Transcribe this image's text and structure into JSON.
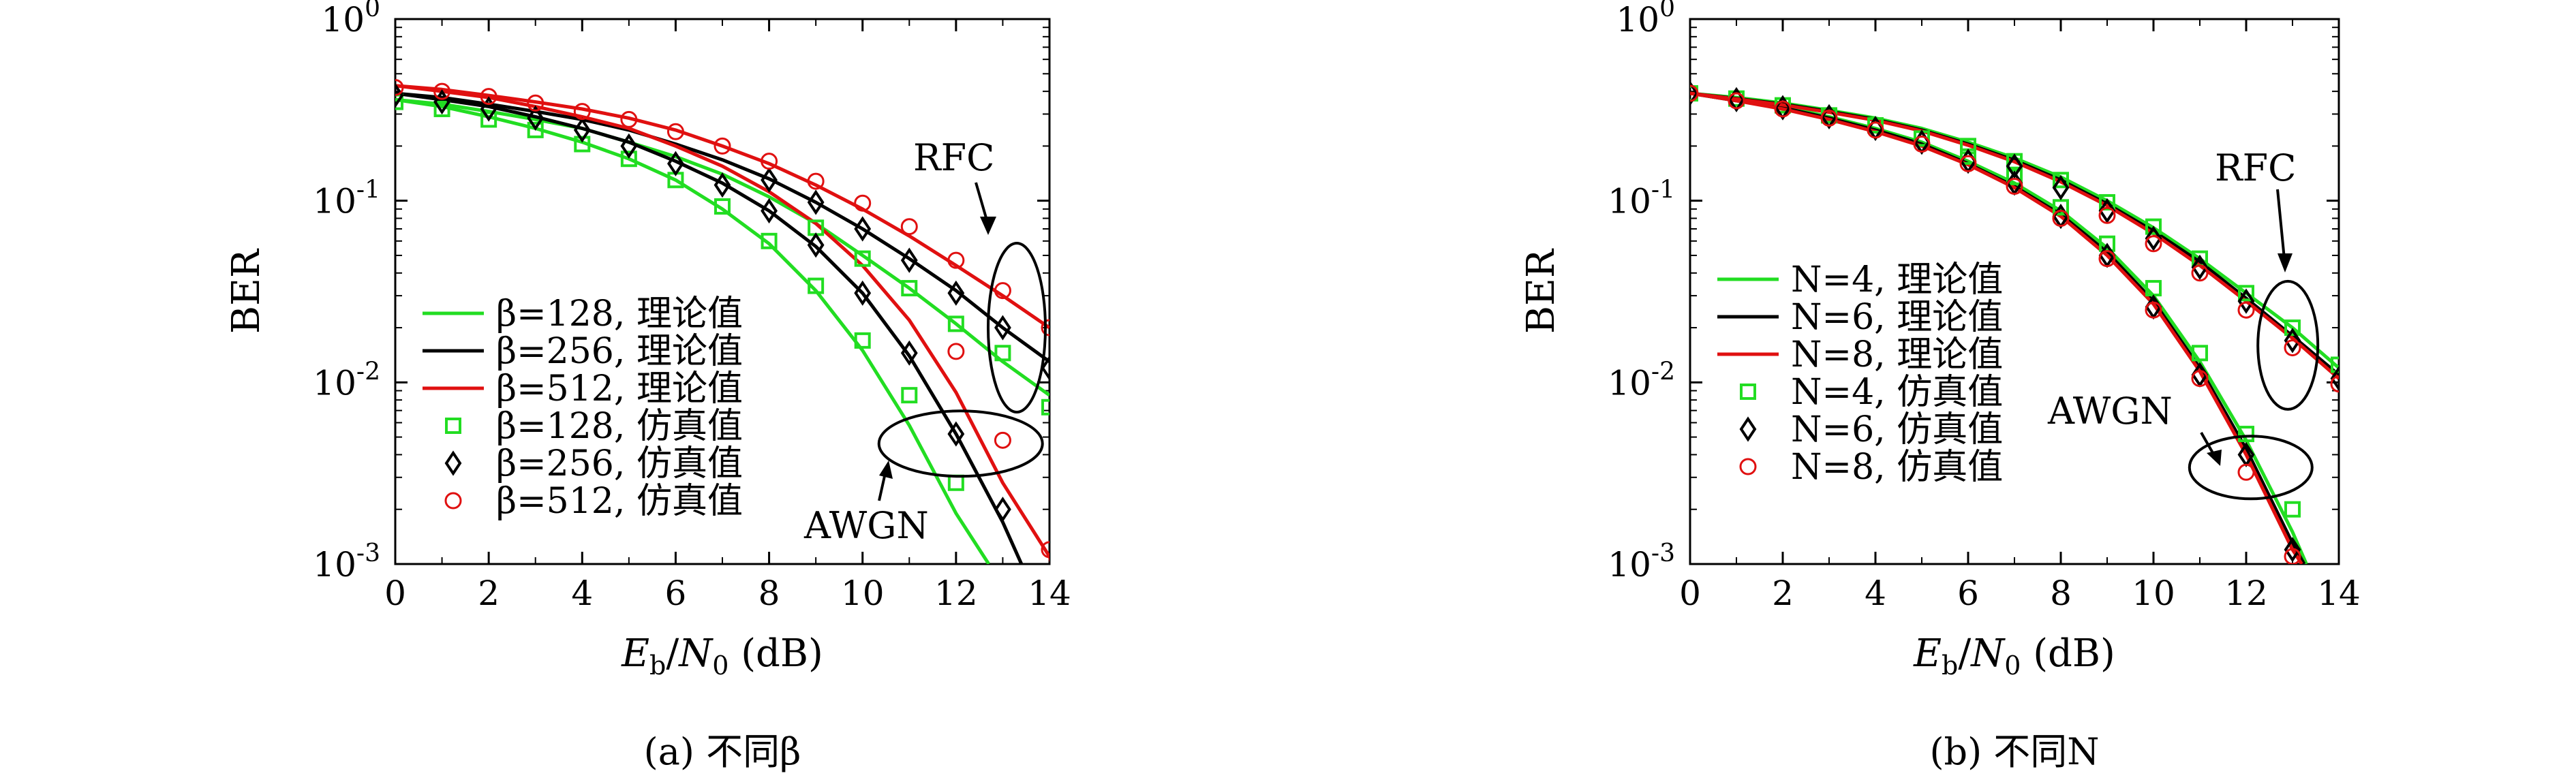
{
  "chart_data": [
    {
      "id": "a",
      "type": "line",
      "caption": "(a) 不同β",
      "xlabel": "E_b/N_0 (dB)",
      "ylabel": "BER",
      "xlim": [
        0,
        14
      ],
      "ylim": [
        0.001,
        1
      ],
      "yscale": "log",
      "x_ticks": [
        "0",
        "2",
        "4",
        "6",
        "8",
        "10",
        "12",
        "14"
      ],
      "y_ticks": [
        "10^0",
        "10^-1",
        "10^-2",
        "10^-3"
      ],
      "grid": false,
      "legend_position": "lower-left",
      "colors": {
        "green": "#22dd22",
        "black": "#000000",
        "red": "#e01010"
      },
      "legend": [
        {
          "label": "β=128, 理论值",
          "style": "line",
          "color": "#22dd22"
        },
        {
          "label": "β=256, 理论值",
          "style": "line",
          "color": "#000000"
        },
        {
          "label": "β=512, 理论值",
          "style": "line",
          "color": "#e01010"
        },
        {
          "label": "β=128, 仿真值",
          "style": "square",
          "color": "#22dd22"
        },
        {
          "label": "β=256, 仿真值",
          "style": "diamond",
          "color": "#000000"
        },
        {
          "label": "β=512, 仿真值",
          "style": "circle",
          "color": "#e01010"
        }
      ],
      "annotations": [
        "RFC",
        "AWGN"
      ],
      "series": [
        {
          "name": "β=128, 理论值",
          "kind": "line",
          "color": "#22dd22",
          "x": [
            0,
            1,
            2,
            3,
            4,
            5,
            6,
            7,
            8,
            9,
            10,
            11,
            12,
            12.7
          ],
          "y": [
            0.36,
            0.33,
            0.29,
            0.25,
            0.21,
            0.17,
            0.13,
            0.09,
            0.058,
            0.032,
            0.015,
            0.0058,
            0.0019,
            0.001
          ]
        },
        {
          "name": "β=128, 理论值",
          "kind": "line",
          "color": "#22dd22",
          "x": [
            0,
            1,
            2,
            3,
            4,
            5,
            6,
            7,
            8,
            9,
            10,
            11,
            12,
            13,
            14
          ],
          "y": [
            0.36,
            0.34,
            0.31,
            0.28,
            0.25,
            0.21,
            0.175,
            0.14,
            0.105,
            0.075,
            0.05,
            0.033,
            0.021,
            0.013,
            0.0085
          ]
        },
        {
          "name": "β=256, 理论值",
          "kind": "line",
          "color": "#000000",
          "x": [
            0,
            1,
            2,
            3,
            4,
            5,
            6,
            7,
            8,
            9,
            10,
            11,
            12,
            13,
            13.4
          ],
          "y": [
            0.39,
            0.36,
            0.33,
            0.29,
            0.25,
            0.21,
            0.165,
            0.125,
            0.088,
            0.056,
            0.031,
            0.014,
            0.0052,
            0.0017,
            0.001
          ]
        },
        {
          "name": "β=256, 理论值",
          "kind": "line",
          "color": "#000000",
          "x": [
            0,
            1,
            2,
            3,
            4,
            5,
            6,
            7,
            8,
            9,
            10,
            11,
            12,
            13,
            14
          ],
          "y": [
            0.39,
            0.37,
            0.34,
            0.31,
            0.28,
            0.245,
            0.205,
            0.168,
            0.132,
            0.098,
            0.07,
            0.048,
            0.032,
            0.02,
            0.013
          ]
        },
        {
          "name": "β=512, 理论值",
          "kind": "line",
          "color": "#e01010",
          "x": [
            0,
            1,
            2,
            3,
            4,
            5,
            6,
            7,
            8,
            9,
            10,
            11,
            12,
            13,
            14,
            14.05
          ],
          "y": [
            0.43,
            0.4,
            0.37,
            0.33,
            0.29,
            0.25,
            0.2,
            0.155,
            0.112,
            0.075,
            0.044,
            0.022,
            0.0088,
            0.0028,
            0.0011,
            0.001
          ]
        },
        {
          "name": "β=512, 理论值",
          "kind": "line",
          "color": "#e01010",
          "x": [
            0,
            1,
            2,
            3,
            4,
            5,
            6,
            7,
            8,
            9,
            10,
            11,
            12,
            13,
            14
          ],
          "y": [
            0.43,
            0.41,
            0.38,
            0.35,
            0.32,
            0.285,
            0.245,
            0.2,
            0.16,
            0.122,
            0.09,
            0.064,
            0.044,
            0.03,
            0.02
          ]
        },
        {
          "name": "β=128, 仿真值",
          "kind": "marker",
          "marker": "square",
          "color": "#22dd22",
          "x": [
            0,
            1,
            2,
            3,
            4,
            5,
            6,
            7,
            8,
            9,
            10,
            11,
            12
          ],
          "y": [
            0.35,
            0.32,
            0.28,
            0.245,
            0.205,
            0.17,
            0.13,
            0.093,
            0.06,
            0.034,
            0.017,
            0.0085,
            0.0028
          ]
        },
        {
          "name": "β=128, 仿真值",
          "kind": "marker",
          "marker": "square",
          "color": "#22dd22",
          "x": [
            9,
            10,
            11,
            12,
            13,
            14
          ],
          "y": [
            0.071,
            0.048,
            0.033,
            0.021,
            0.0145,
            0.0073
          ]
        },
        {
          "name": "β=256, 仿真值",
          "kind": "marker",
          "marker": "diamond",
          "color": "#000000",
          "x": [
            0,
            1,
            2,
            3,
            4,
            5,
            6,
            7,
            8,
            9,
            10,
            11,
            12,
            13
          ],
          "y": [
            0.38,
            0.35,
            0.32,
            0.285,
            0.245,
            0.2,
            0.16,
            0.122,
            0.088,
            0.057,
            0.031,
            0.0145,
            0.0052,
            0.002
          ]
        },
        {
          "name": "β=256, 仿真值",
          "kind": "marker",
          "marker": "diamond",
          "color": "#000000",
          "x": [
            8,
            9,
            10,
            11,
            12,
            13,
            14
          ],
          "y": [
            0.13,
            0.098,
            0.07,
            0.047,
            0.031,
            0.02,
            0.012
          ]
        },
        {
          "name": "β=512, 仿真值",
          "kind": "marker",
          "marker": "circle",
          "color": "#e01010",
          "x": [
            0,
            1,
            2,
            3,
            4,
            5,
            6,
            7,
            8,
            9,
            10,
            11,
            12,
            13,
            14
          ],
          "y": [
            0.42,
            0.4,
            0.375,
            0.345,
            0.31,
            0.28,
            0.24,
            0.2,
            0.165,
            0.128,
            0.097,
            0.072,
            0.047,
            0.032,
            0.02
          ]
        },
        {
          "name": "β=512, 仿真值",
          "kind": "marker",
          "marker": "circle",
          "color": "#e01010",
          "x": [
            12,
            13,
            14
          ],
          "y": [
            0.0148,
            0.0048,
            0.0012
          ]
        }
      ]
    },
    {
      "id": "b",
      "type": "line",
      "caption": "(b) 不同N",
      "xlabel": "E_b/N_0 (dB)",
      "ylabel": "BER",
      "xlim": [
        0,
        14
      ],
      "ylim": [
        0.001,
        1
      ],
      "yscale": "log",
      "x_ticks": [
        "0",
        "2",
        "4",
        "6",
        "8",
        "10",
        "12",
        "14"
      ],
      "y_ticks": [
        "10^0",
        "10^-1",
        "10^-2",
        "10^-3"
      ],
      "grid": false,
      "legend_position": "left",
      "colors": {
        "green": "#22dd22",
        "black": "#000000",
        "red": "#e01010"
      },
      "legend": [
        {
          "label": "N=4, 理论值",
          "style": "line",
          "color": "#22dd22"
        },
        {
          "label": "N=6, 理论值",
          "style": "line",
          "color": "#000000"
        },
        {
          "label": "N=8, 理论值",
          "style": "line",
          "color": "#e01010"
        },
        {
          "label": "N=4, 仿真值",
          "style": "square",
          "color": "#22dd22"
        },
        {
          "label": "N=6, 仿真值",
          "style": "diamond",
          "color": "#000000"
        },
        {
          "label": "N=8, 仿真值",
          "style": "circle",
          "color": "#e01010"
        }
      ],
      "annotations": [
        "RFC",
        "AWGN"
      ],
      "series": [
        {
          "name": "N=4, 理论值",
          "kind": "line",
          "color": "#22dd22",
          "x": [
            0,
            1,
            2,
            3,
            4,
            5,
            6,
            7,
            8,
            9,
            10,
            11,
            12,
            13,
            13.3
          ],
          "y": [
            0.39,
            0.36,
            0.33,
            0.29,
            0.25,
            0.21,
            0.165,
            0.125,
            0.088,
            0.055,
            0.03,
            0.013,
            0.0048,
            0.0015,
            0.001
          ]
        },
        {
          "name": "N=4, 理论值",
          "kind": "line",
          "color": "#22dd22",
          "x": [
            0,
            1,
            2,
            3,
            4,
            5,
            6,
            7,
            8,
            9,
            10,
            11,
            12,
            13,
            14
          ],
          "y": [
            0.39,
            0.37,
            0.345,
            0.315,
            0.285,
            0.25,
            0.21,
            0.172,
            0.135,
            0.1,
            0.071,
            0.048,
            0.031,
            0.02,
            0.012
          ]
        },
        {
          "name": "N=6, 理论值",
          "kind": "line",
          "color": "#000000",
          "x": [
            0,
            1,
            2,
            3,
            4,
            5,
            6,
            7,
            8,
            9,
            10,
            11,
            12,
            13,
            13.25
          ],
          "y": [
            0.39,
            0.355,
            0.325,
            0.285,
            0.245,
            0.205,
            0.16,
            0.12,
            0.084,
            0.052,
            0.028,
            0.012,
            0.0043,
            0.0013,
            0.001
          ]
        },
        {
          "name": "N=6, 理论值",
          "kind": "line",
          "color": "#000000",
          "x": [
            0,
            1,
            2,
            3,
            4,
            5,
            6,
            7,
            8,
            9,
            10,
            11,
            12,
            13,
            14
          ],
          "y": [
            0.39,
            0.365,
            0.34,
            0.31,
            0.28,
            0.245,
            0.205,
            0.167,
            0.13,
            0.096,
            0.068,
            0.046,
            0.029,
            0.018,
            0.011
          ]
        },
        {
          "name": "N=8, 理论值",
          "kind": "line",
          "color": "#e01010",
          "x": [
            0,
            1,
            2,
            3,
            4,
            5,
            6,
            7,
            8,
            9,
            10,
            11,
            12,
            13,
            13.2
          ],
          "y": [
            0.39,
            0.355,
            0.32,
            0.28,
            0.24,
            0.2,
            0.158,
            0.118,
            0.082,
            0.05,
            0.027,
            0.0115,
            0.004,
            0.0012,
            0.001
          ]
        },
        {
          "name": "N=8, 理论值",
          "kind": "line",
          "color": "#e01010",
          "x": [
            0,
            1,
            2,
            3,
            4,
            5,
            6,
            7,
            8,
            9,
            10,
            11,
            12,
            13,
            14
          ],
          "y": [
            0.39,
            0.363,
            0.337,
            0.307,
            0.277,
            0.242,
            0.202,
            0.164,
            0.127,
            0.094,
            0.066,
            0.044,
            0.028,
            0.0175,
            0.0105
          ]
        },
        {
          "name": "N=4, 仿真值",
          "kind": "marker",
          "marker": "square",
          "color": "#22dd22",
          "x": [
            0,
            1,
            2,
            3,
            4,
            5,
            6,
            7,
            8,
            9,
            10,
            11,
            12,
            13
          ],
          "y": [
            0.39,
            0.365,
            0.335,
            0.295,
            0.26,
            0.22,
            0.175,
            0.135,
            0.092,
            0.058,
            0.033,
            0.0145,
            0.0052,
            0.002
          ]
        },
        {
          "name": "N=4, 仿真值",
          "kind": "marker",
          "marker": "square",
          "color": "#22dd22",
          "x": [
            6,
            7,
            8,
            9,
            10,
            11,
            12,
            13,
            14
          ],
          "y": [
            0.2,
            0.165,
            0.13,
            0.098,
            0.072,
            0.048,
            0.031,
            0.02,
            0.0125
          ]
        },
        {
          "name": "N=6, 仿真值",
          "kind": "marker",
          "marker": "diamond",
          "color": "#000000",
          "x": [
            0,
            1,
            2,
            3,
            4,
            5,
            6,
            7,
            8,
            9,
            10,
            11,
            12,
            13
          ],
          "y": [
            0.39,
            0.36,
            0.325,
            0.29,
            0.25,
            0.21,
            0.165,
            0.125,
            0.082,
            0.05,
            0.026,
            0.011,
            0.004,
            0.0012
          ]
        },
        {
          "name": "N=6, 仿真值",
          "kind": "marker",
          "marker": "diamond",
          "color": "#000000",
          "x": [
            7,
            8,
            9,
            10,
            11,
            12,
            13,
            14
          ],
          "y": [
            0.155,
            0.118,
            0.088,
            0.062,
            0.043,
            0.028,
            0.017,
            0.0105
          ]
        },
        {
          "name": "N=8, 仿真值",
          "kind": "marker",
          "marker": "circle",
          "color": "#e01010",
          "x": [
            0,
            1,
            2,
            3,
            4,
            5,
            6,
            7,
            8,
            9,
            10,
            11,
            12,
            13
          ],
          "y": [
            0.39,
            0.355,
            0.32,
            0.285,
            0.245,
            0.205,
            0.16,
            0.12,
            0.08,
            0.048,
            0.025,
            0.0105,
            0.0032,
            0.0011
          ]
        },
        {
          "name": "N=8, 仿真值",
          "kind": "marker",
          "marker": "circle",
          "color": "#e01010",
          "x": [
            9,
            10,
            11,
            12,
            13,
            14
          ],
          "y": [
            0.083,
            0.058,
            0.04,
            0.025,
            0.0155,
            0.0098
          ]
        }
      ]
    }
  ]
}
